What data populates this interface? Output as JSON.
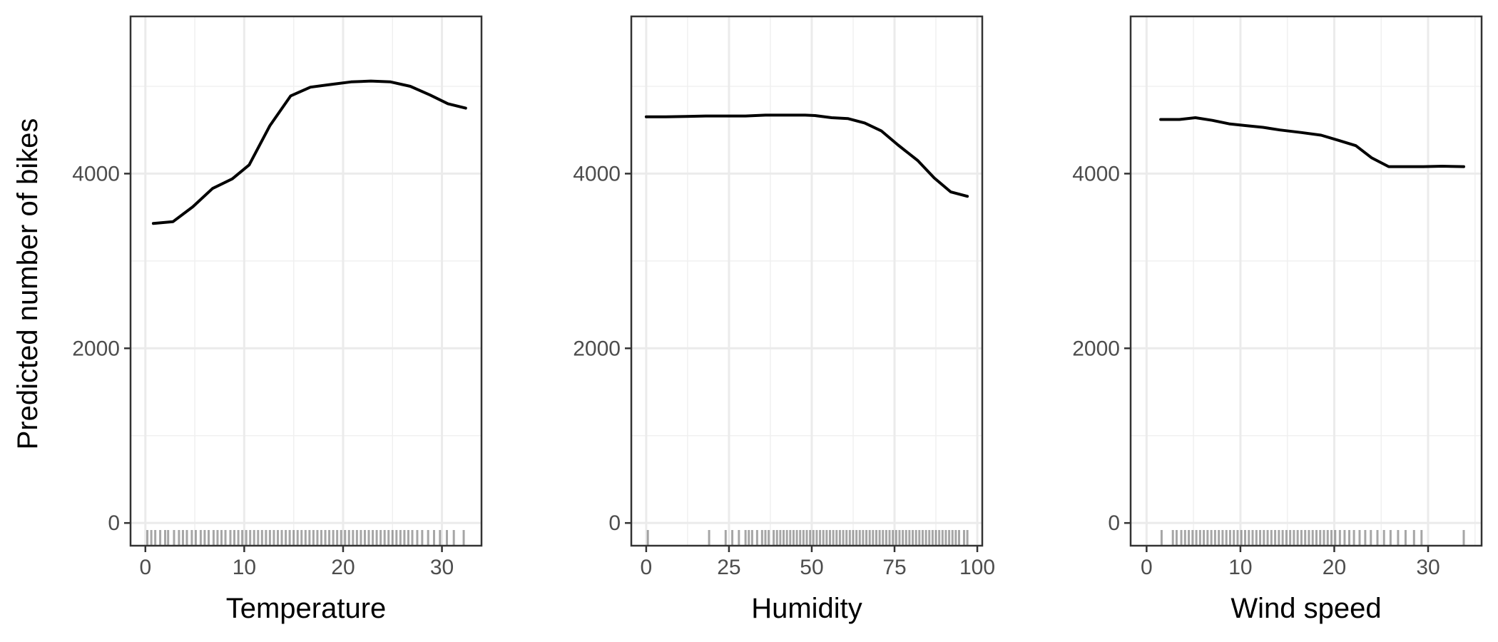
{
  "ylabel": "Predicted number of bikes",
  "chart_data": [
    {
      "type": "line",
      "xlabel": "Temperature",
      "xlim": [
        -1.5,
        34
      ],
      "ylim": [
        -260,
        5800
      ],
      "x_ticks": [
        0,
        10,
        20,
        30
      ],
      "y_ticks": [
        0,
        2000,
        4000
      ],
      "grid": true,
      "series": [
        {
          "x": [
            0.8,
            2.8,
            4.8,
            6.8,
            8.8,
            10.5,
            12.6,
            14.7,
            16.7,
            18.7,
            20.8,
            22.8,
            24.8,
            26.8,
            28.8,
            30.6,
            32.4
          ],
          "y": [
            3430,
            3450,
            3620,
            3830,
            3940,
            4100,
            4550,
            4890,
            4990,
            5020,
            5050,
            5060,
            5050,
            5000,
            4900,
            4800,
            4750
          ]
        }
      ],
      "rug": [
        0.2,
        0.6,
        1.0,
        1.5,
        2.0,
        2.3,
        2.9,
        3.4,
        3.8,
        4.2,
        4.7,
        5.1,
        5.6,
        6.0,
        6.4,
        6.9,
        7.3,
        7.7,
        8.1,
        8.6,
        9.0,
        9.4,
        9.8,
        10.2,
        10.6,
        11.0,
        11.4,
        11.8,
        12.2,
        12.6,
        13.0,
        13.4,
        13.8,
        14.2,
        14.6,
        15.0,
        15.4,
        15.8,
        16.2,
        16.6,
        17.0,
        17.4,
        17.8,
        18.2,
        18.6,
        19.0,
        19.4,
        19.8,
        20.2,
        20.6,
        21.0,
        21.4,
        21.8,
        22.2,
        22.6,
        23.0,
        23.4,
        23.8,
        24.2,
        24.6,
        25.0,
        25.4,
        25.8,
        26.2,
        26.6,
        27.0,
        27.5,
        28.0,
        28.6,
        29.2,
        29.8,
        30.5,
        31.2,
        32.2
      ]
    },
    {
      "type": "line",
      "xlabel": "Humidity",
      "xlim": [
        -4.5,
        101.5
      ],
      "ylim": [
        -260,
        5800
      ],
      "x_ticks": [
        0,
        25,
        50,
        75,
        100
      ],
      "y_ticks": [
        0,
        2000,
        4000
      ],
      "grid": true,
      "series": [
        {
          "x": [
            0,
            6,
            12,
            18,
            24,
            30,
            36,
            42,
            48,
            51,
            56,
            61,
            66,
            71,
            76,
            82,
            87,
            92,
            97
          ],
          "y": [
            4650,
            4650,
            4655,
            4660,
            4660,
            4660,
            4670,
            4670,
            4670,
            4665,
            4640,
            4630,
            4580,
            4490,
            4330,
            4150,
            3950,
            3790,
            3740
          ]
        }
      ],
      "rug": [
        0.5,
        19,
        24,
        26,
        28,
        30,
        31,
        32,
        33.5,
        35,
        36,
        37,
        38.5,
        39.5,
        40.5,
        41.5,
        42.5,
        43.5,
        44.5,
        45.5,
        46.5,
        47.5,
        48.5,
        49.5,
        50.5,
        51.5,
        52.5,
        53.5,
        54.5,
        55.5,
        56.5,
        57.5,
        58.5,
        59.5,
        60.5,
        61.5,
        62.5,
        63.5,
        64.5,
        65.5,
        66.5,
        67.5,
        68.5,
        69.5,
        70.5,
        71.5,
        72.5,
        73.5,
        74.5,
        75.5,
        76.5,
        77.5,
        78.5,
        79.5,
        80.5,
        81.5,
        82.5,
        83.5,
        84.5,
        85.5,
        86.5,
        87.5,
        88.5,
        89.5,
        90.5,
        91.5,
        92.5,
        93.5,
        94.5,
        96,
        97
      ]
    },
    {
      "type": "line",
      "xlabel": "Wind speed",
      "xlim": [
        -1.7,
        35.7
      ],
      "ylim": [
        -260,
        5800
      ],
      "x_ticks": [
        0,
        10,
        20,
        30
      ],
      "y_ticks": [
        0,
        2000,
        4000
      ],
      "grid": true,
      "series": [
        {
          "x": [
            1.5,
            3.5,
            5.2,
            7.0,
            8.8,
            10.6,
            12.4,
            14.2,
            16.5,
            18.6,
            20.5,
            22.3,
            24.0,
            25.8,
            27.5,
            29.5,
            31.5,
            33.8
          ],
          "y": [
            4620,
            4620,
            4640,
            4610,
            4570,
            4550,
            4530,
            4500,
            4470,
            4440,
            4380,
            4320,
            4180,
            4080,
            4080,
            4080,
            4085,
            4080
          ]
        }
      ],
      "rug": [
        1.6,
        2.8,
        3.2,
        3.7,
        4.1,
        4.5,
        4.9,
        5.3,
        5.7,
        6.1,
        6.5,
        6.9,
        7.3,
        7.7,
        8.1,
        8.5,
        8.9,
        9.3,
        9.7,
        10.1,
        10.5,
        10.9,
        11.3,
        11.7,
        12.1,
        12.5,
        12.9,
        13.3,
        13.7,
        14.1,
        14.5,
        14.9,
        15.3,
        15.7,
        16.1,
        16.5,
        16.9,
        17.3,
        17.7,
        18.1,
        18.5,
        18.9,
        19.3,
        19.7,
        20.1,
        20.6,
        21.1,
        21.6,
        22.1,
        22.7,
        23.3,
        23.9,
        24.6,
        25.3,
        26.0,
        26.8,
        27.6,
        28.5,
        29.3,
        33.8
      ]
    }
  ]
}
